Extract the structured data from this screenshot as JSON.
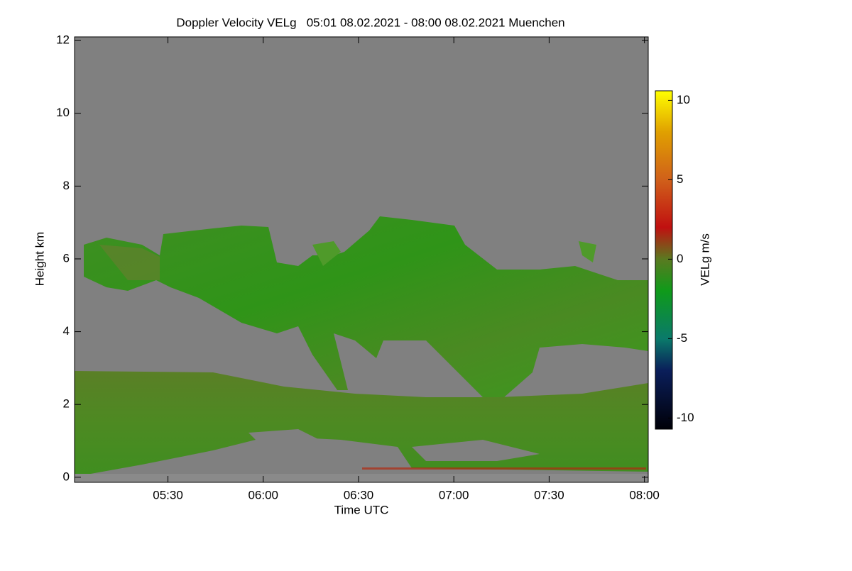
{
  "chart_data": {
    "type": "heatmap",
    "title": "Doppler Velocity VELg   05:01 08.02.2021 - 08:00 08.02.2021 Muenchen",
    "x_label": "Time UTC",
    "y_label": "Height km",
    "colorbar_label": "VELg m/s",
    "background": "#808080",
    "xlim": [
      5.01,
      8.02
    ],
    "xticks": [
      {
        "value": 5.5,
        "label": "05:30"
      },
      {
        "value": 6,
        "label": "06:00"
      },
      {
        "value": 6.5,
        "label": "06:30"
      },
      {
        "value": 7,
        "label": "07:00"
      },
      {
        "value": 7.5,
        "label": "07:30"
      },
      {
        "value": 8,
        "label": "08:00"
      }
    ],
    "ylim": [
      -0.14,
      12.1
    ],
    "yticks": [
      0,
      2,
      4,
      6,
      8,
      10,
      12
    ],
    "zlim": [
      -10.7,
      10.6
    ],
    "zticks": [
      -10,
      -5,
      0,
      5,
      10
    ],
    "colormap": [
      {
        "value": -10.7,
        "color": "#000008"
      },
      {
        "value": -7,
        "color": "#0a1e5a"
      },
      {
        "value": -5,
        "color": "#0a7a6a"
      },
      {
        "value": -2,
        "color": "#0f9a1a"
      },
      {
        "value": 0,
        "color": "#5a7a20"
      },
      {
        "value": 2,
        "color": "#c01010"
      },
      {
        "value": 5,
        "color": "#d0601a"
      },
      {
        "value": 8,
        "color": "#e0a000"
      },
      {
        "value": 10.6,
        "color": "#ffff00"
      }
    ]
  }
}
